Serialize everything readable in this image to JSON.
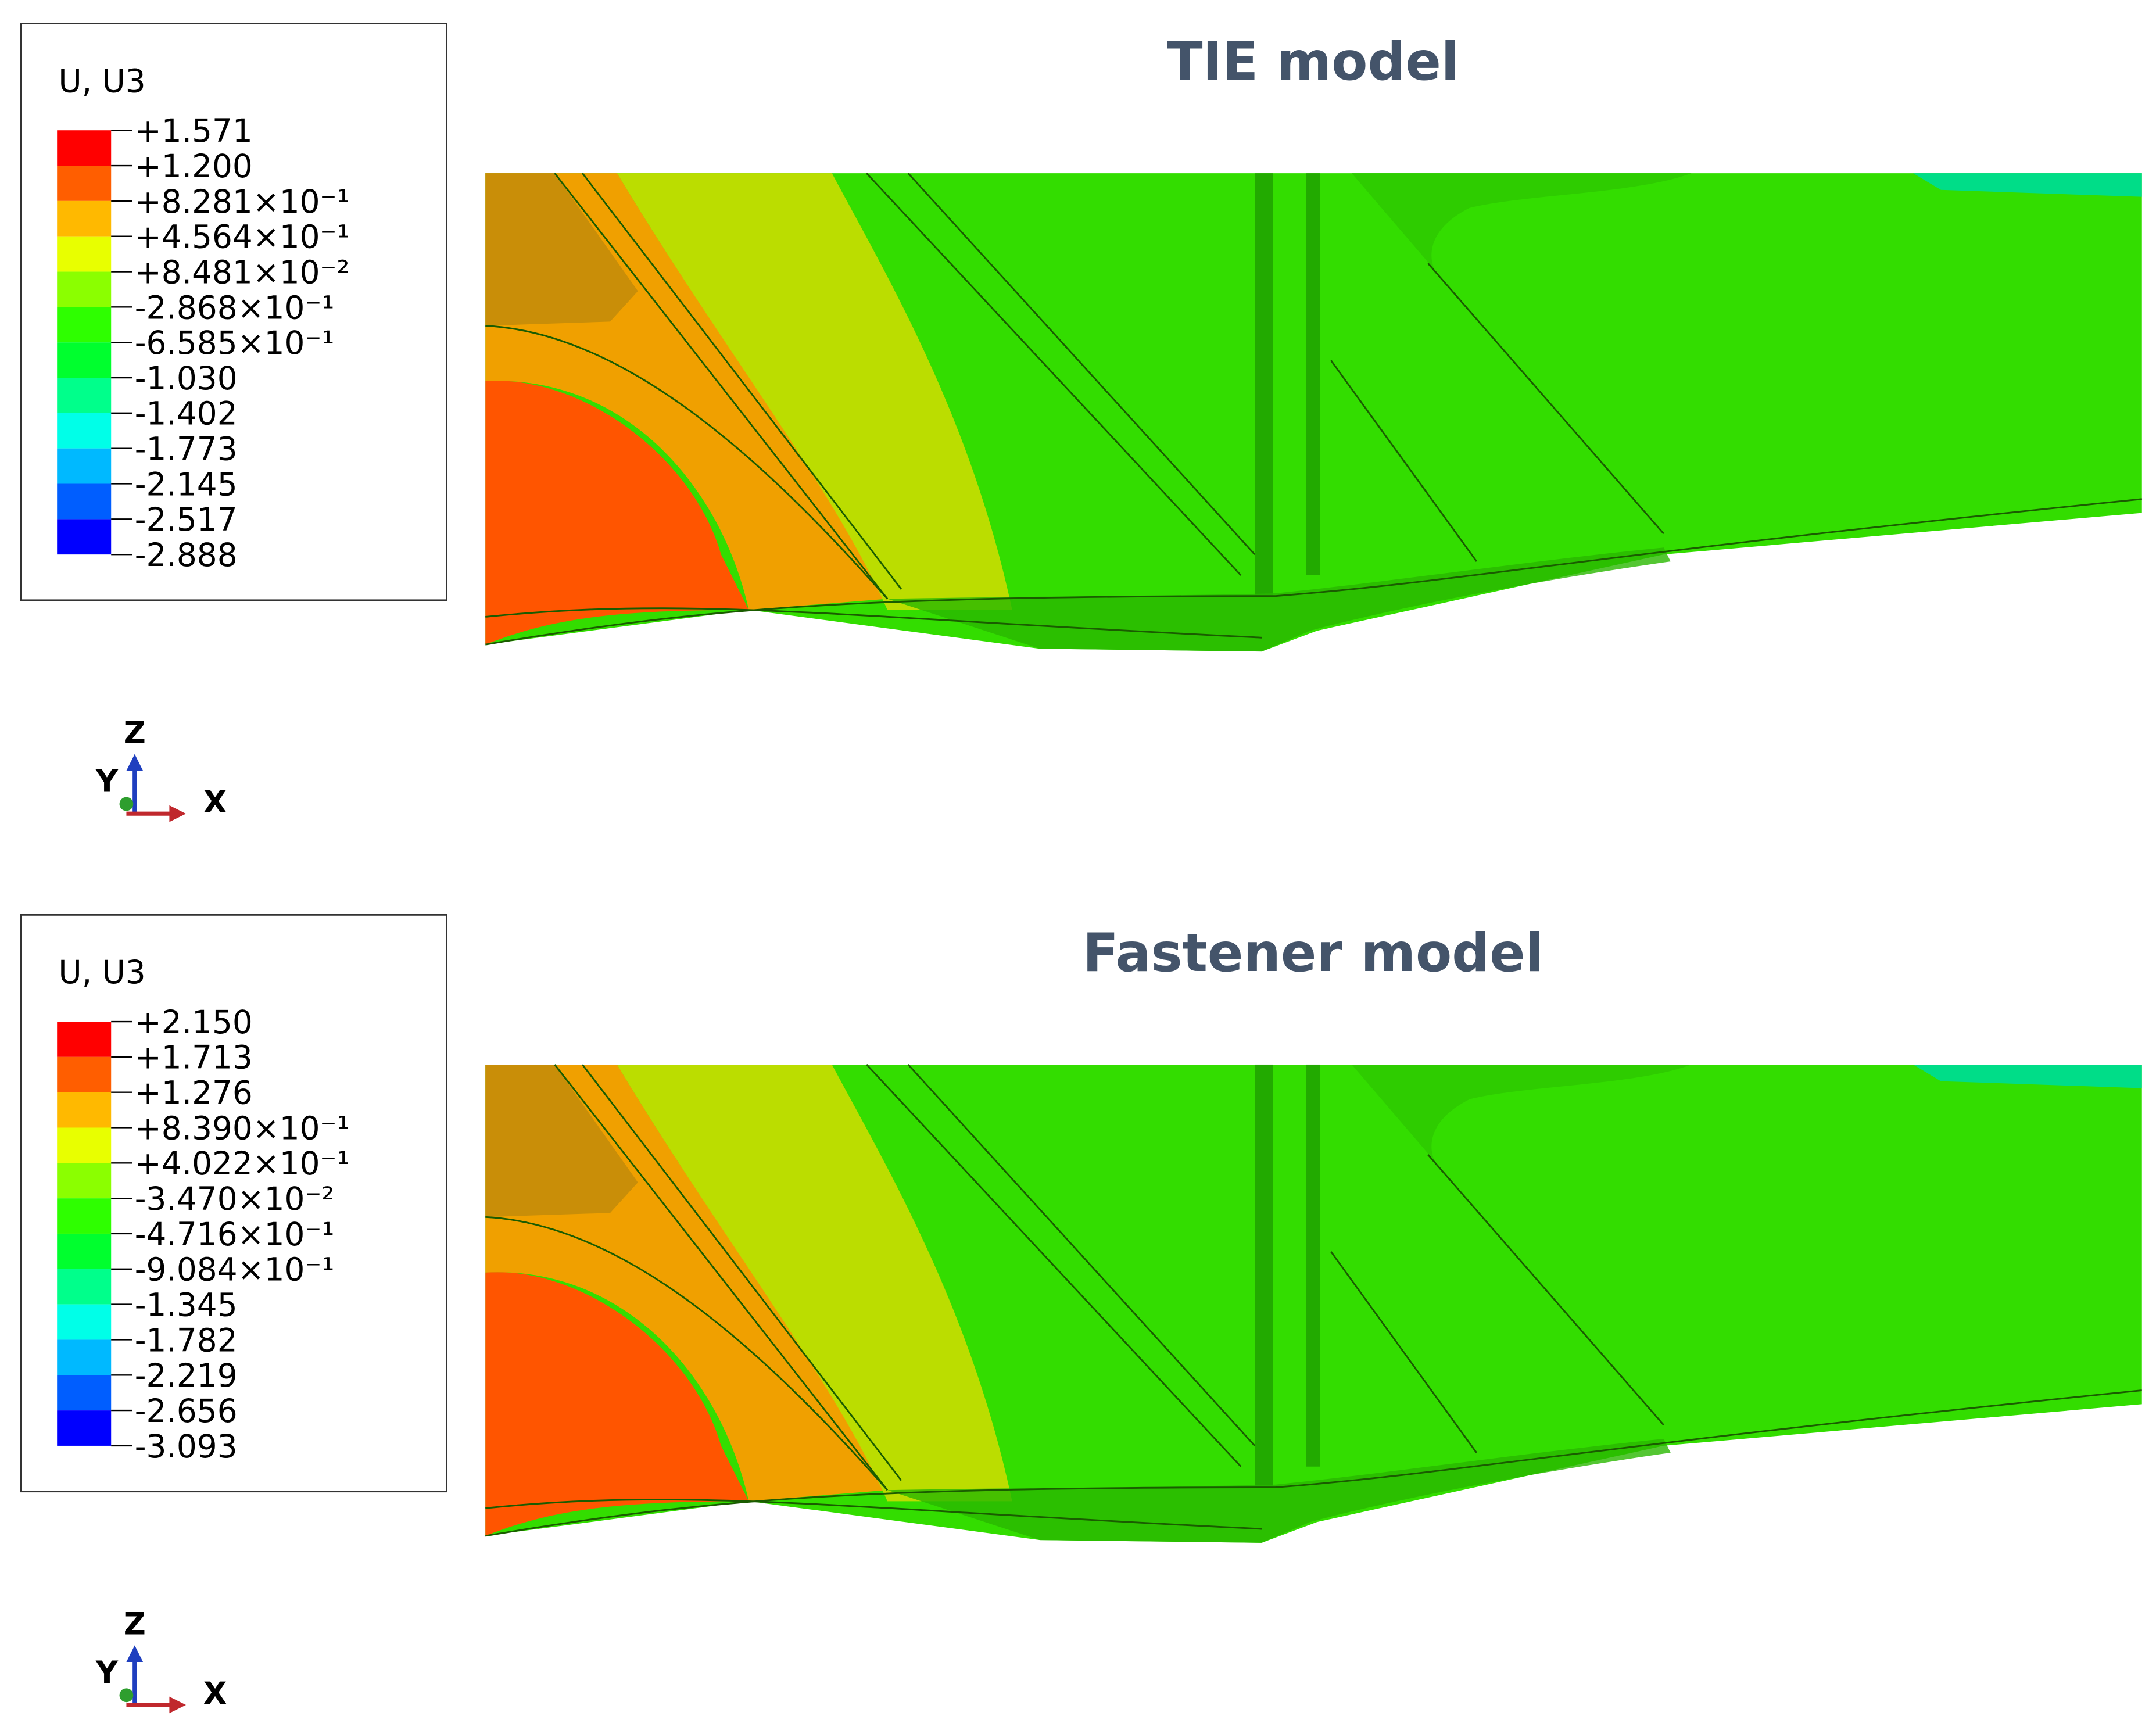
{
  "panels": [
    {
      "title": "TIE model",
      "legend": {
        "title": "U, U3",
        "labels": [
          "+1.571",
          "+1.200",
          "+8.281×10⁻¹",
          "+4.564×10⁻¹",
          "+8.481×10⁻²",
          "-2.868×10⁻¹",
          "-6.585×10⁻¹",
          "-1.030",
          "-1.402",
          "-1.773",
          "-2.145",
          "-2.517",
          "-2.888"
        ],
        "colors": [
          "#ff0000",
          "#ff5e00",
          "#ffb900",
          "#e8ff00",
          "#8bff00",
          "#2eff00",
          "#00ff2e",
          "#00ff8b",
          "#00ffe8",
          "#00b9ff",
          "#005eff",
          "#0000ff"
        ]
      },
      "triad": {
        "z": "Z",
        "y": "Y",
        "x": "X"
      }
    },
    {
      "title": "Fastener model",
      "legend": {
        "title": "U, U3",
        "labels": [
          "+2.150",
          "+1.713",
          "+1.276",
          "+8.390×10⁻¹",
          "+4.022×10⁻¹",
          "-3.470×10⁻²",
          "-4.716×10⁻¹",
          "-9.084×10⁻¹",
          "-1.345",
          "-1.782",
          "-2.219",
          "-2.656",
          "-3.093"
        ],
        "colors": [
          "#ff0000",
          "#ff5e00",
          "#ffb900",
          "#e8ff00",
          "#8bff00",
          "#2eff00",
          "#00ff2e",
          "#00ff8b",
          "#00ffe8",
          "#00b9ff",
          "#005eff",
          "#0000ff"
        ]
      },
      "triad": {
        "z": "Z",
        "y": "Y",
        "x": "X"
      }
    }
  ]
}
